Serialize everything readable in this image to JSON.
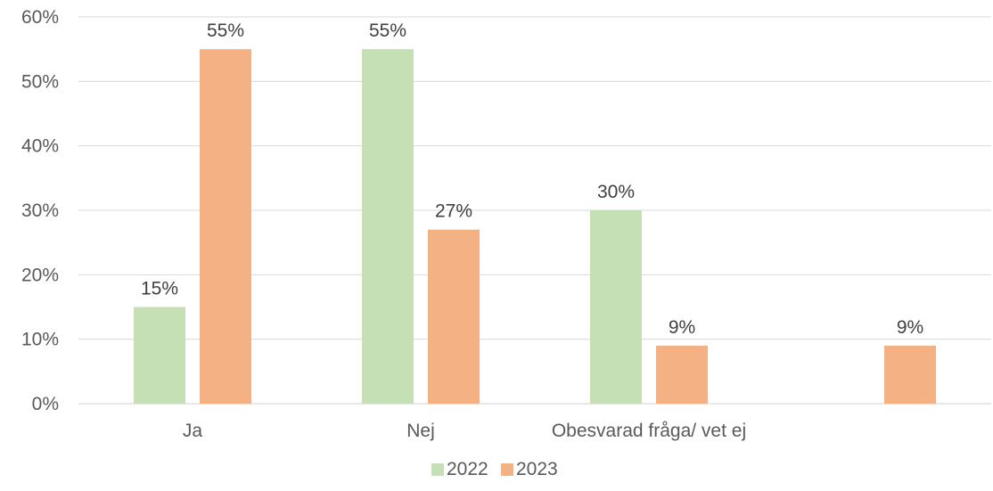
{
  "chart_data": {
    "type": "bar",
    "categories": [
      "Ja",
      "Nej",
      "Obesvarad fråga/ vet ej",
      ""
    ],
    "series": [
      {
        "name": "2022",
        "values": [
          15,
          55,
          30,
          null
        ],
        "labels": [
          "15%",
          "55%",
          "30%",
          ""
        ],
        "color": "#c5e0b4"
      },
      {
        "name": "2023",
        "values": [
          55,
          27,
          9,
          9
        ],
        "labels": [
          "55%",
          "27%",
          "9%",
          "9%"
        ],
        "color": "#f4b183"
      }
    ],
    "ylim": [
      0,
      60
    ],
    "yticks": [
      0,
      10,
      20,
      30,
      40,
      50,
      60
    ],
    "ytick_labels": [
      "0%",
      "10%",
      "20%",
      "30%",
      "40%",
      "50%",
      "60%"
    ],
    "grid": true,
    "legend_position": "bottom",
    "title": "",
    "xlabel": "",
    "ylabel": ""
  }
}
